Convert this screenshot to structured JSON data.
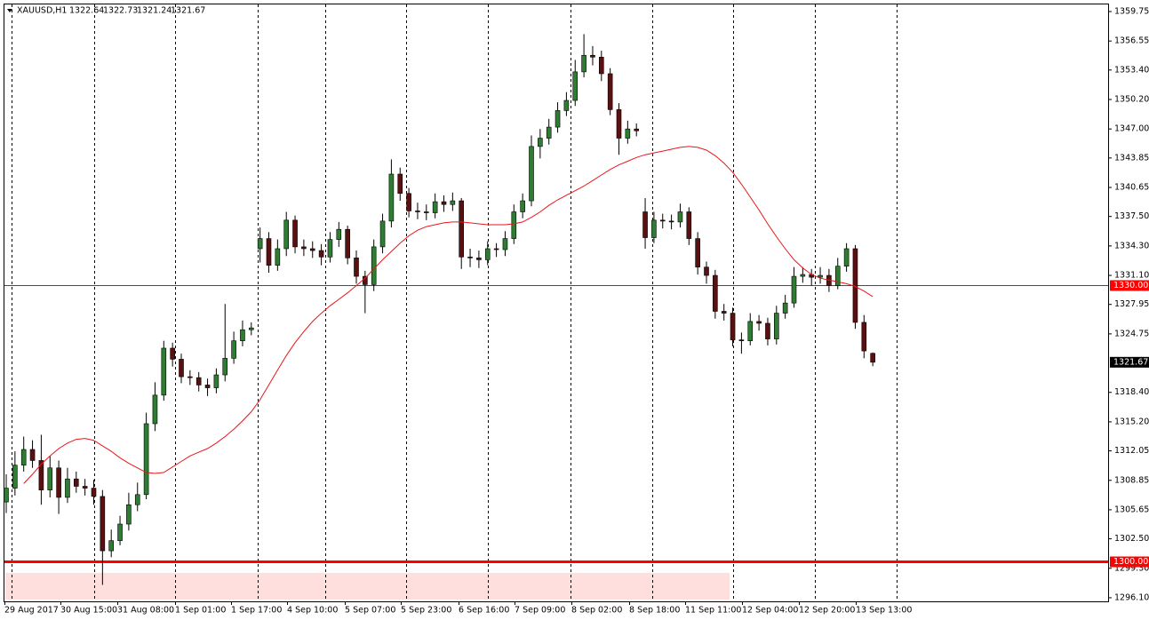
{
  "chart_data": {
    "type": "candlestick",
    "symbol": "XAUUSD,H1",
    "x_labels": [
      "29 Aug 2017",
      "30 Aug 15:00",
      "31 Aug 08:00",
      "1 Sep 01:00",
      "1 Sep 17:00",
      "4 Sep 10:00",
      "5 Sep 07:00",
      "5 Sep 23:00",
      "6 Sep 16:00",
      "7 Sep 09:00",
      "8 Sep 02:00",
      "8 Sep 18:00",
      "11 Sep 11:00",
      "12 Sep 04:00",
      "12 Sep 20:00",
      "13 Sep 13:00"
    ],
    "open": [
      1306.5,
      1308.0,
      1310.5,
      1312.2,
      1311.0,
      1307.8,
      1310.2,
      1307.0,
      1309.0,
      1308.2,
      1308.0,
      1307.1,
      1301.2,
      1302.3,
      1304.1,
      1306.2,
      1307.3,
      1315.0,
      1318.1,
      1323.2,
      1322.0,
      1320.1,
      1320.0,
      1319.2,
      1318.9,
      1320.3,
      1322.1,
      1324.0,
      1325.2,
      1334.0,
      1335.1,
      1332.2,
      1334.0,
      1337.1,
      1334.2,
      1334.0,
      1333.8,
      1333.1,
      1335.0,
      1336.1,
      1333.0,
      1331.0,
      1330.1,
      1334.2,
      1337.0,
      1342.1,
      1340.0,
      1338.1,
      1338.0,
      1337.9,
      1339.1,
      1338.8,
      1339.2,
      1333.1,
      1333.0,
      1332.8,
      1334.0,
      1333.9,
      1335.1,
      1338.0,
      1339.2,
      1345.1,
      1346.0,
      1347.2,
      1349.0,
      1350.1,
      1353.2,
      1355.0,
      1354.8,
      1353.0,
      1349.1,
      1346.0,
      1347.0,
      1338.0,
      1335.2,
      1337.1,
      1337.0,
      1336.9,
      1338.0,
      1335.1,
      1332.0,
      1331.1,
      1327.2,
      1327.0,
      1324.1,
      1324.0,
      1326.1,
      1325.9,
      1324.2,
      1327.0,
      1328.1,
      1331.0,
      1331.2,
      1330.9,
      1331.1,
      1330.0,
      1332.1,
      1334.0,
      1326.0,
      1322.64
    ],
    "high": [
      1309.5,
      1312.0,
      1313.6,
      1313.2,
      1313.8,
      1311.5,
      1311.0,
      1310.2,
      1309.8,
      1309.0,
      1308.9,
      1307.8,
      1303.5,
      1305.0,
      1307.5,
      1308.6,
      1316.2,
      1319.5,
      1324.0,
      1323.8,
      1322.6,
      1320.8,
      1320.6,
      1319.9,
      1321.0,
      1328.0,
      1325.0,
      1326.2,
      1326.0,
      1336.3,
      1335.8,
      1335.0,
      1338.0,
      1337.6,
      1335.0,
      1334.8,
      1334.5,
      1335.8,
      1336.9,
      1336.5,
      1333.8,
      1331.6,
      1335.0,
      1337.8,
      1343.7,
      1342.8,
      1340.6,
      1339.0,
      1338.8,
      1340.0,
      1339.8,
      1340.1,
      1339.5,
      1334.0,
      1333.8,
      1334.8,
      1334.6,
      1335.9,
      1338.8,
      1340.0,
      1346.3,
      1347.0,
      1348.1,
      1349.9,
      1351.0,
      1354.5,
      1357.3,
      1356.0,
      1355.5,
      1353.6,
      1349.8,
      1347.9,
      1347.6,
      1339.5,
      1338.0,
      1337.8,
      1337.7,
      1338.9,
      1338.5,
      1335.8,
      1332.6,
      1331.7,
      1328.0,
      1327.6,
      1324.9,
      1327.0,
      1326.8,
      1326.5,
      1327.8,
      1329.0,
      1332.0,
      1332.0,
      1331.8,
      1332.0,
      1331.8,
      1333.0,
      1334.6,
      1334.4,
      1326.8,
      1322.73
    ],
    "low": [
      1305.3,
      1307.2,
      1309.8,
      1310.2,
      1306.2,
      1307.0,
      1305.2,
      1306.4,
      1307.5,
      1307.2,
      1306.2,
      1297.5,
      1300.5,
      1301.8,
      1303.4,
      1305.5,
      1306.8,
      1314.2,
      1317.5,
      1321.2,
      1319.4,
      1319.2,
      1318.5,
      1318.0,
      1318.3,
      1319.6,
      1321.5,
      1323.4,
      1324.6,
      1332.5,
      1331.4,
      1331.6,
      1333.2,
      1333.5,
      1333.2,
      1333.0,
      1332.2,
      1332.5,
      1334.2,
      1332.3,
      1330.2,
      1327.0,
      1329.4,
      1333.5,
      1336.3,
      1339.2,
      1337.4,
      1337.2,
      1337.1,
      1337.3,
      1338.0,
      1338.1,
      1331.8,
      1332.0,
      1331.9,
      1332.2,
      1333.1,
      1333.2,
      1334.5,
      1337.3,
      1338.6,
      1343.8,
      1345.3,
      1346.6,
      1348.4,
      1349.5,
      1352.6,
      1353.9,
      1352.2,
      1348.5,
      1344.2,
      1345.4,
      1346.2,
      1334.0,
      1334.6,
      1336.2,
      1336.1,
      1336.3,
      1334.4,
      1331.2,
      1330.2,
      1326.4,
      1326.2,
      1323.4,
      1322.6,
      1323.5,
      1325.1,
      1323.5,
      1323.6,
      1326.4,
      1327.6,
      1330.3,
      1330.0,
      1330.2,
      1329.3,
      1329.6,
      1331.5,
      1325.3,
      1322.1,
      1321.24
    ],
    "close": [
      1308.0,
      1310.5,
      1312.2,
      1311.0,
      1307.8,
      1310.2,
      1307.0,
      1309.0,
      1308.2,
      1308.0,
      1307.1,
      1301.2,
      1302.3,
      1304.1,
      1306.2,
      1307.3,
      1315.0,
      1318.1,
      1323.2,
      1322.0,
      1320.1,
      1320.0,
      1319.2,
      1318.9,
      1320.3,
      1322.1,
      1324.0,
      1325.2,
      1325.4,
      1335.1,
      1332.2,
      1334.0,
      1337.1,
      1334.2,
      1334.0,
      1333.8,
      1333.1,
      1335.0,
      1336.1,
      1333.0,
      1331.0,
      1330.1,
      1334.2,
      1337.0,
      1342.1,
      1340.0,
      1338.1,
      1338.0,
      1337.9,
      1339.1,
      1338.8,
      1339.2,
      1333.1,
      1333.0,
      1332.8,
      1334.0,
      1333.9,
      1335.1,
      1338.0,
      1339.2,
      1345.1,
      1346.0,
      1347.2,
      1349.0,
      1350.1,
      1353.2,
      1355.0,
      1354.8,
      1353.0,
      1349.1,
      1346.0,
      1347.0,
      1346.8,
      1335.2,
      1337.1,
      1337.0,
      1336.9,
      1338.0,
      1335.1,
      1332.0,
      1331.1,
      1327.2,
      1327.0,
      1324.1,
      1324.0,
      1326.1,
      1325.9,
      1324.2,
      1327.0,
      1328.1,
      1331.0,
      1331.2,
      1330.9,
      1331.1,
      1330.0,
      1332.1,
      1334.0,
      1326.0,
      1322.9,
      1321.67
    ],
    "ma": [
      null,
      null,
      1308.5,
      1309.5,
      1310.6,
      1311.5,
      1312.3,
      1312.9,
      1313.3,
      1313.4,
      1313.2,
      1312.6,
      1312.0,
      1311.3,
      1310.7,
      1310.2,
      1309.7,
      1309.6,
      1309.7,
      1310.3,
      1310.9,
      1311.5,
      1311.9,
      1312.3,
      1312.9,
      1313.6,
      1314.4,
      1315.3,
      1316.3,
      1317.6,
      1319.2,
      1320.8,
      1322.4,
      1323.8,
      1325.0,
      1326.1,
      1327.0,
      1327.8,
      1328.5,
      1329.2,
      1330.0,
      1330.8,
      1331.8,
      1332.8,
      1333.7,
      1334.6,
      1335.4,
      1336.0,
      1336.4,
      1336.6,
      1336.8,
      1336.9,
      1336.9,
      1336.8,
      1336.7,
      1336.6,
      1336.6,
      1336.6,
      1336.7,
      1336.9,
      1337.4,
      1338.0,
      1338.7,
      1339.3,
      1339.8,
      1340.3,
      1340.8,
      1341.4,
      1342.0,
      1342.6,
      1343.1,
      1343.5,
      1343.9,
      1344.2,
      1344.4,
      1344.6,
      1344.8,
      1345.0,
      1345.1,
      1345.0,
      1344.7,
      1344.1,
      1343.3,
      1342.3,
      1341.0,
      1339.6,
      1338.2,
      1336.7,
      1335.3,
      1334.0,
      1332.8,
      1331.9,
      1331.2,
      1330.8,
      1330.6,
      1330.4,
      1330.2,
      1329.9,
      1329.4,
      1328.8
    ],
    "up_color": "#2e7d32",
    "down_color": "#5a1010",
    "ma_color": "#e8161b",
    "levels": [
      {
        "value": 1330,
        "label": "1330.00",
        "color": "#ff0000",
        "width": 1
      },
      {
        "value": 1300,
        "label": "1300.00",
        "color": "#ff0000",
        "width": 3
      }
    ],
    "zone": [
      1295.9,
      1298.8
    ],
    "zone_color": "#ffdede",
    "ylim": [
      1295.71,
      1360.52
    ],
    "yticks": [
      1359.75,
      1356.55,
      {
        "value": 1353.4,
        "label": "1353.40"
      },
      {
        "value": 1350.2,
        "label": "1350.20"
      },
      {
        "value": 1347,
        "label": "1347.00"
      },
      1343.85,
      1340.65,
      {
        "value": 1337.5,
        "label": "1337.50"
      },
      {
        "value": 1334.3,
        "label": "1334.30"
      },
      {
        "value": 1331.1,
        "label": "1331.10"
      },
      1327.95,
      1324.75,
      {
        "value": 1318.4,
        "label": "1318.40"
      },
      {
        "value": 1315.2,
        "label": "1315.20"
      },
      1312.05,
      1308.85,
      1305.65,
      {
        "value": 1302.5,
        "label": "1302.50"
      },
      {
        "value": 1299.3,
        "label": "1299.30"
      },
      {
        "value": 1296.1,
        "label": "1296.10"
      }
    ]
  }
}
